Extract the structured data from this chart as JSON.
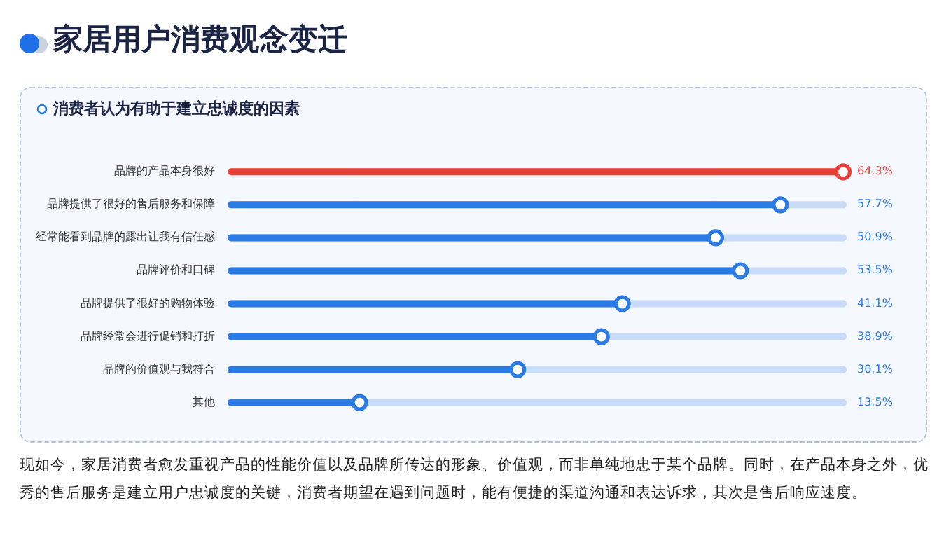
{
  "chart_data": {
    "type": "lollipop",
    "title": "家居用户消费观念变迁",
    "subtitle": "消费者认为有助于建立忠诚度的因素",
    "orientation": "horizontal",
    "grid": "y",
    "categories": [
      "品牌的产品本身很好",
      "品牌提供了很好的售后服务和保障",
      "经常能看到品牌的露出让我有信任感",
      "品牌评价和口碑",
      "品牌提供了很好的购物体验",
      "品牌经常会进行促销和打折",
      "品牌的价值观与我符合",
      "其他"
    ],
    "values": [
      64.3,
      57.7,
      50.9,
      53.5,
      41.1,
      38.9,
      30.1,
      13.5
    ],
    "colors": [
      "#e8413a",
      "#2a7be4",
      "#2a7be4",
      "#2a7be4",
      "#2a7be4",
      "#2a7be4",
      "#2a7be4",
      "#2a7be4"
    ],
    "value_labels": [
      "64.3%",
      "57.7%",
      "50.9%",
      "53.5%",
      "41.1%",
      "38.9%",
      "30.1%",
      "13.5%"
    ],
    "annotations": [
      "现如今，家居消费者愈发重视产品的性能价值以及品牌所传达的形象、价值观，而非单纯地忠于某个品牌。同时，在产品本身之外，优秀的售后服务是建立用户忠诚度的关键，消费者期望在遇到问题时，能有便捷的渠道沟通和表达诉求，其次是售后响应速度。"
    ]
  }
}
